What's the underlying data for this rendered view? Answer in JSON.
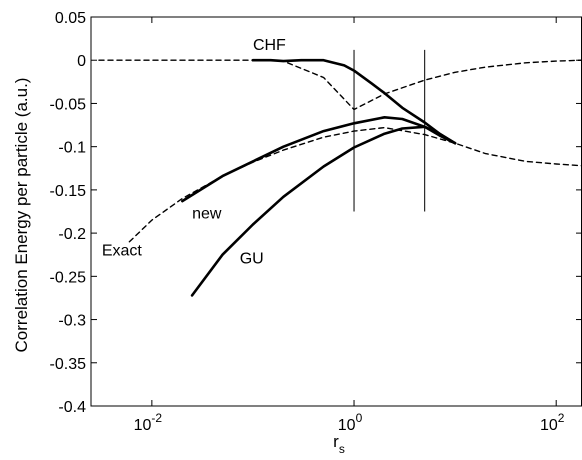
{
  "chart_data": {
    "type": "line",
    "title": "",
    "xlabel": "r",
    "xlabel_sub": "s",
    "ylabel": "Correlation Energy per particle (a.u.)",
    "x_scale": "log",
    "xlim": [
      0.0025,
      180
    ],
    "ylim": [
      -0.4,
      0.05
    ],
    "grid": false,
    "legend": "none",
    "x_ticks": [
      {
        "value": 0.01,
        "base": "10",
        "exp": "-2"
      },
      {
        "value": 1,
        "base": "10",
        "exp": "0"
      },
      {
        "value": 100,
        "base": "10",
        "exp": "2"
      }
    ],
    "y_ticks": [
      {
        "value": 0.05,
        "label": "0.05"
      },
      {
        "value": 0,
        "label": "0"
      },
      {
        "value": -0.05,
        "label": "-0.05"
      },
      {
        "value": -0.1,
        "label": "-0.1"
      },
      {
        "value": -0.15,
        "label": "-0.15"
      },
      {
        "value": -0.2,
        "label": "-0.2"
      },
      {
        "value": -0.25,
        "label": "-0.25"
      },
      {
        "value": -0.3,
        "label": "-0.3"
      },
      {
        "value": -0.35,
        "label": "-0.35"
      },
      {
        "value": -0.4,
        "label": "-0.4"
      }
    ],
    "series": [
      {
        "name": "Exact",
        "style": "dashed",
        "color": "#000000",
        "x": [
          0.006,
          0.01,
          0.02,
          0.05,
          0.1,
          0.2,
          0.5,
          1,
          2,
          5,
          10,
          20,
          50,
          100,
          180
        ],
        "y": [
          -0.21,
          -0.185,
          -0.16,
          -0.134,
          -0.118,
          -0.104,
          -0.089,
          -0.082,
          -0.078,
          -0.086,
          -0.096,
          -0.108,
          -0.117,
          -0.12,
          -0.122
        ]
      },
      {
        "name": "",
        "style": "dashed",
        "color": "#000000",
        "x": [
          0.003,
          0.01,
          0.05,
          0.1,
          0.2,
          0.5,
          1,
          2,
          5,
          10,
          20,
          50,
          100,
          180
        ],
        "y": [
          0,
          0,
          0,
          0,
          -0.001,
          -0.02,
          -0.057,
          -0.039,
          -0.023,
          -0.014,
          -0.008,
          -0.003,
          -0.001,
          0
        ]
      },
      {
        "name": "new",
        "style": "solid",
        "color": "#000000",
        "x": [
          0.02,
          0.05,
          0.1,
          0.2,
          0.5,
          1,
          2,
          3,
          5,
          7,
          10
        ],
        "y": [
          -0.163,
          -0.134,
          -0.117,
          -0.1,
          -0.082,
          -0.073,
          -0.066,
          -0.068,
          -0.077,
          -0.087,
          -0.096
        ]
      },
      {
        "name": "GU",
        "style": "solid",
        "color": "#000000",
        "x": [
          0.025,
          0.05,
          0.1,
          0.2,
          0.5,
          1,
          2,
          3,
          5,
          7,
          10
        ],
        "y": [
          -0.272,
          -0.225,
          -0.19,
          -0.158,
          -0.123,
          -0.101,
          -0.085,
          -0.079,
          -0.077,
          -0.085,
          -0.096
        ]
      },
      {
        "name": "CHF",
        "style": "solid",
        "color": "#000000",
        "x": [
          0.1,
          0.15,
          0.2,
          0.3,
          0.5,
          0.8,
          1,
          1.5,
          2,
          3,
          5,
          7,
          10
        ],
        "y": [
          0,
          0,
          -0.001,
          0,
          0,
          -0.006,
          -0.012,
          -0.027,
          -0.038,
          -0.055,
          -0.072,
          -0.085,
          -0.096
        ]
      }
    ],
    "vertical_markers": [
      {
        "x": 1,
        "y_top": 0.012,
        "y_bottom": -0.175
      },
      {
        "x": 5,
        "y_top": 0.012,
        "y_bottom": -0.175
      }
    ],
    "annotations": [
      {
        "text": "CHF",
        "x": 0.1,
        "y": 0.012
      },
      {
        "text": "new",
        "x": 0.025,
        "y": -0.183
      },
      {
        "text": "Exact",
        "x": 0.0032,
        "y": -0.226
      },
      {
        "text": "GU",
        "x": 0.074,
        "y": -0.235
      }
    ]
  }
}
